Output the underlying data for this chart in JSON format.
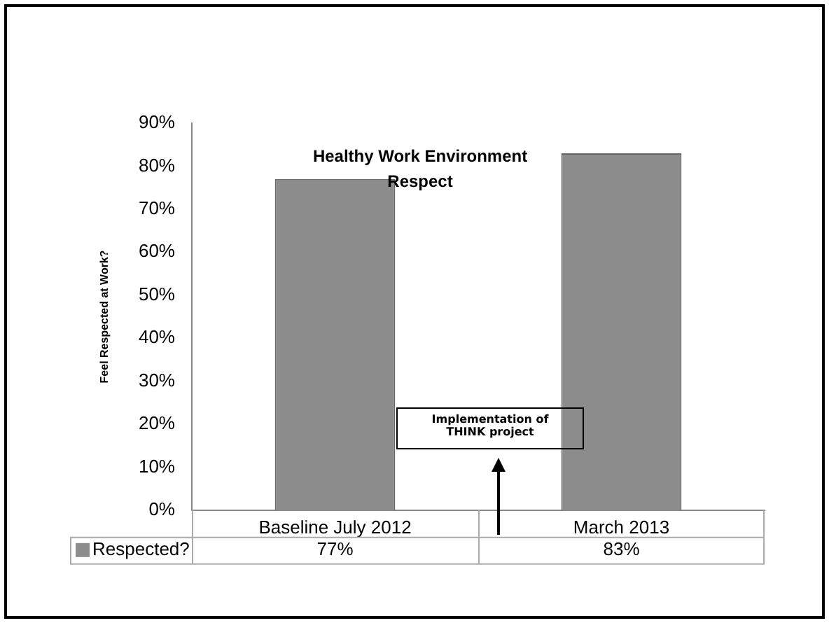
{
  "chart_data": {
    "type": "bar",
    "title": "Healthy Work Environment\nRespect",
    "ylabel": "Feel Respected at Work?",
    "categories": [
      "Baseline July 2012",
      "March 2013"
    ],
    "series": [
      {
        "name": "Respected?",
        "color": "#8c8c8c",
        "values": [
          77,
          83
        ],
        "value_labels": [
          "77%",
          "83%"
        ]
      }
    ],
    "ylim": [
      0,
      90
    ],
    "yticks": [
      {
        "value": 0,
        "label": "0%"
      },
      {
        "value": 10,
        "label": "10%"
      },
      {
        "value": 20,
        "label": "20%"
      },
      {
        "value": 30,
        "label": "30%"
      },
      {
        "value": 40,
        "label": "40%"
      },
      {
        "value": 50,
        "label": "50%"
      },
      {
        "value": 60,
        "label": "60%"
      },
      {
        "value": 70,
        "label": "70%"
      },
      {
        "value": 80,
        "label": "80%"
      },
      {
        "value": 90,
        "label": "90%"
      }
    ],
    "grid": false,
    "legend": "bottom left",
    "annotations": [
      "Implementation of THINK project"
    ]
  }
}
